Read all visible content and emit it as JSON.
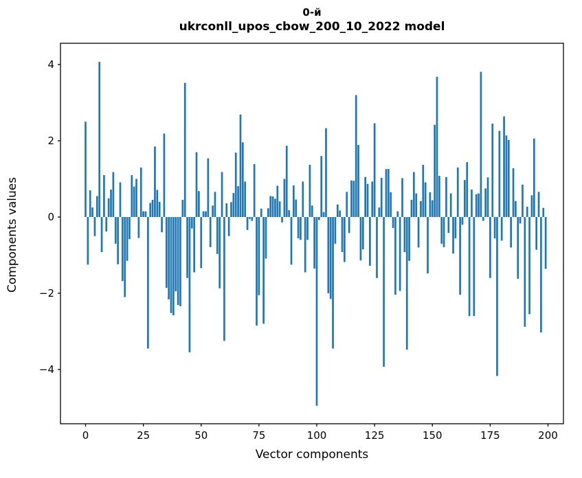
{
  "figure": {
    "title_line1": "0-й",
    "title_line2": "ukrconll_upos_cbow_200_10_2022 model",
    "xlabel": "Vector components",
    "ylabel": "Components values"
  },
  "chart_data": {
    "type": "bar",
    "title": "0-й — ukrconll_upos_cbow_200_10_2022 model",
    "xlabel": "Vector components",
    "ylabel": "Components values",
    "x_start": 0,
    "x_end": 199,
    "xlim": [
      -10.9,
      206.7
    ],
    "ylim": [
      -5.4,
      4.52
    ],
    "xticks": [
      0,
      25,
      50,
      75,
      100,
      125,
      150,
      175,
      200
    ],
    "yticks": [
      -4,
      -2,
      0,
      2,
      4
    ],
    "grid": false,
    "legend": "none",
    "bar_color": "#1f77b4",
    "values": [
      2.5,
      -1.25,
      0.7,
      0.25,
      -0.5,
      0.55,
      4.07,
      -0.92,
      1.1,
      -0.38,
      0.49,
      0.72,
      1.18,
      -0.7,
      -1.24,
      0.91,
      -1.68,
      -2.1,
      -1.15,
      -0.58,
      1.1,
      0.8,
      1.0,
      -0.55,
      1.3,
      0.15,
      0.15,
      -3.45,
      0.37,
      0.45,
      1.85,
      0.71,
      0.4,
      -0.4,
      2.19,
      -1.86,
      -2.16,
      -2.52,
      -2.58,
      -1.95,
      -2.31,
      -2.34,
      0.45,
      3.52,
      -1.6,
      -3.55,
      -0.3,
      -1.45,
      1.7,
      0.68,
      -1.34,
      0.15,
      0.15,
      1.54,
      -0.79,
      0.3,
      0.66,
      -0.97,
      -1.87,
      1.18,
      -3.25,
      0.36,
      -0.5,
      0.39,
      0.63,
      1.69,
      0.81,
      2.69,
      1.96,
      0.93,
      -0.34,
      -0.05,
      -0.1,
      1.39,
      -2.85,
      -2.05,
      0.22,
      -2.8,
      -1.09,
      0.23,
      0.55,
      0.54,
      0.48,
      0.82,
      0.41,
      -0.14,
      1.0,
      1.87,
      0.18,
      -1.25,
      0.83,
      0.46,
      -0.56,
      -0.6,
      0.93,
      -1.45,
      -0.6,
      1.37,
      0.3,
      -1.35,
      -4.95,
      -0.08,
      1.6,
      0.13,
      2.33,
      -2.0,
      -2.15,
      -3.45,
      -0.7,
      0.33,
      0.17,
      -0.92,
      -1.18,
      0.66,
      -0.42,
      0.96,
      0.95,
      3.2,
      1.89,
      -1.14,
      -0.85,
      1.05,
      0.87,
      -1.28,
      0.93,
      2.46,
      -1.6,
      0.25,
      1.03,
      -3.93,
      1.26,
      1.26,
      0.65,
      -0.29,
      -2.04,
      0.15,
      -1.94,
      1.02,
      -0.92,
      -3.48,
      -1.15,
      0.45,
      1.18,
      0.62,
      -0.8,
      0.42,
      1.37,
      0.91,
      -1.48,
      0.65,
      0.44,
      2.42,
      3.68,
      1.08,
      -0.7,
      -0.79,
      1.05,
      -0.42,
      0.62,
      -0.96,
      -0.56,
      1.3,
      -2.04,
      -0.2,
      0.97,
      1.44,
      -2.6,
      0.72,
      -2.6,
      0.6,
      0.62,
      3.81,
      -0.1,
      0.75,
      1.04,
      -1.6,
      2.45,
      -0.56,
      -4.17,
      2.26,
      -0.62,
      2.64,
      2.14,
      2.02,
      -0.8,
      1.28,
      0.42,
      -1.62,
      -0.17,
      0.85,
      -2.88,
      0.27,
      -2.55,
      0.57,
      2.06,
      -0.86,
      0.66,
      -3.03,
      0.24,
      -1.36
    ]
  }
}
